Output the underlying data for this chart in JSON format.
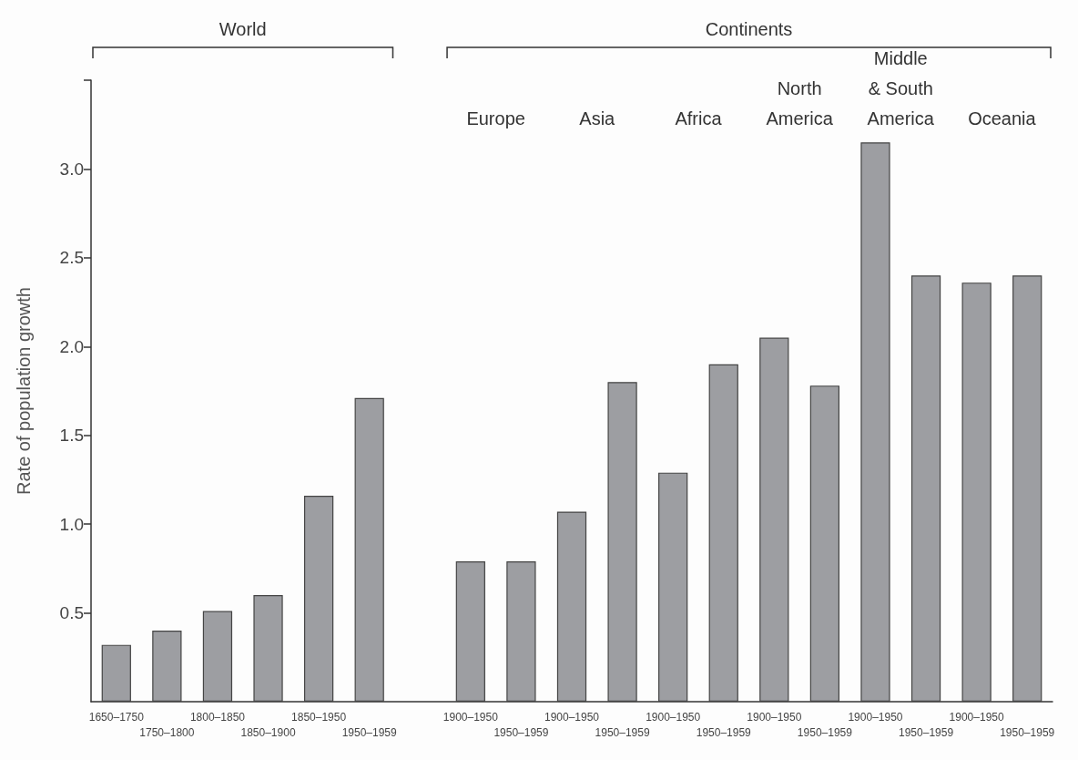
{
  "chart_data": {
    "type": "bar",
    "ylabel": "Rate of population growth",
    "categories": [
      "1650–1750",
      "1750–1800",
      "1800–1850",
      "1850–1900",
      "1850–1950",
      "1950–1959",
      null,
      "1900–1950",
      "1950–1959",
      "1900–1950",
      "1950–1959",
      "1900–1950",
      "1950–1959",
      "1900–1950",
      "1950–1959",
      "1900–1950",
      "1950–1959",
      "1900–1950",
      "1950–1959"
    ],
    "values": [
      0.32,
      0.4,
      0.51,
      0.6,
      1.16,
      1.71,
      null,
      0.79,
      0.79,
      1.07,
      1.8,
      1.29,
      1.9,
      2.05,
      1.78,
      3.15,
      2.4,
      2.36,
      2.4
    ],
    "color": "#9d9ea2",
    "ylim": [
      0,
      3.5
    ],
    "yticks": [
      {
        "value": 0.5,
        "label": "0.5"
      },
      {
        "value": 1,
        "label": "1.0"
      },
      {
        "value": 1.5,
        "label": "1.5"
      },
      {
        "value": 2,
        "label": "2.0"
      },
      {
        "value": 2.5,
        "label": "2.5"
      },
      {
        "value": 3,
        "label": "3.0"
      },
      {
        "value": 3.5,
        "label": null
      }
    ],
    "grid": false,
    "annotations": [
      "World",
      "Continents",
      "Europe",
      "Asia",
      "Africa",
      "North\nAmerica",
      "Middle\n& South\nAmerica",
      "Oceania"
    ]
  }
}
